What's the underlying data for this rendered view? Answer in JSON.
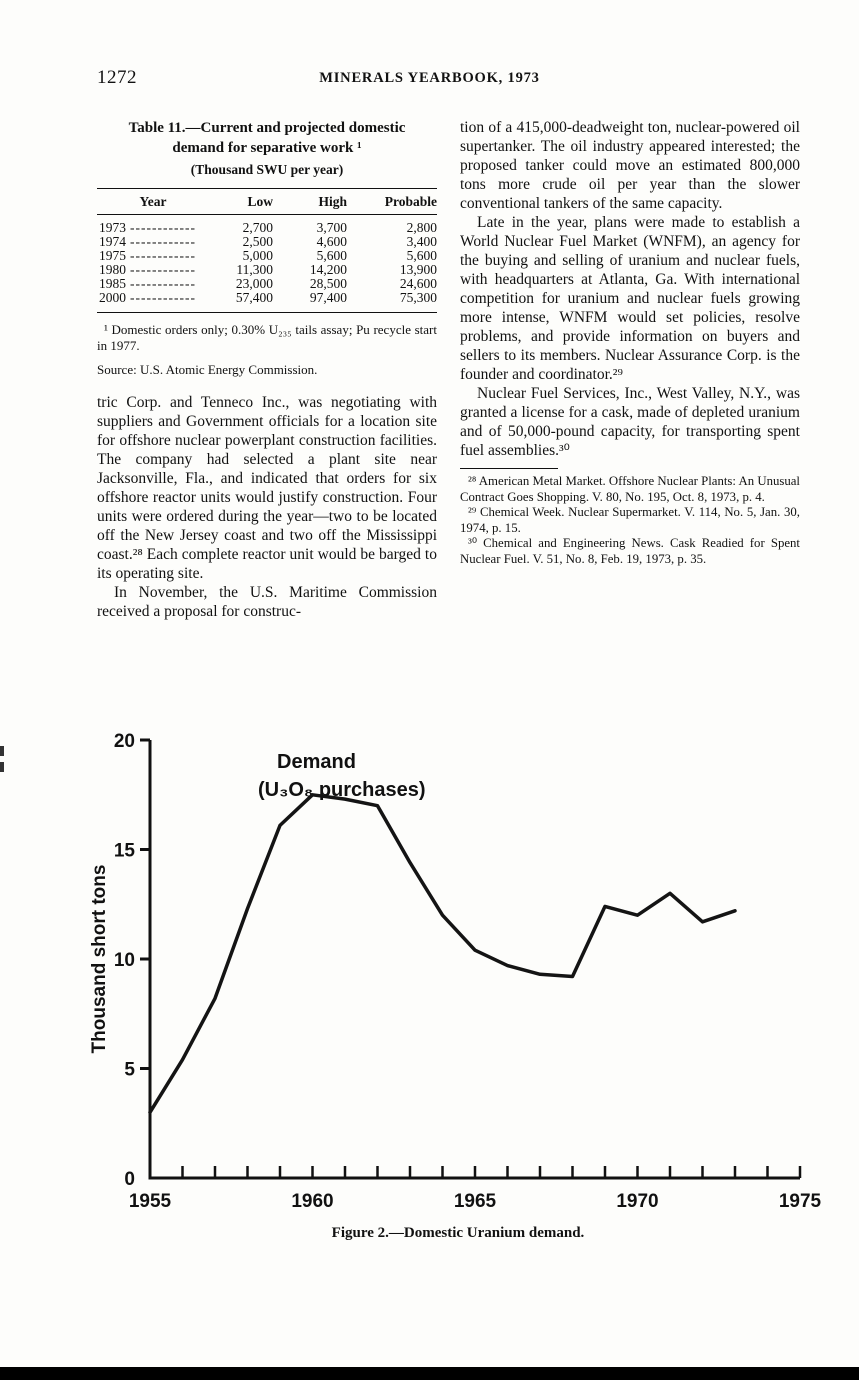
{
  "page": {
    "number": "1272",
    "running_head": "MINERALS YEARBOOK, 1973"
  },
  "table11": {
    "title_line1": "Table 11.—Current and projected domestic",
    "title_line2": "demand for separative work ¹",
    "subtitle": "(Thousand SWU per year)",
    "leader": "------------",
    "headers": {
      "year": "Year",
      "low": "Low",
      "high": "High",
      "probable": "Probable"
    },
    "rows": [
      {
        "year": "1973",
        "low": "2,700",
        "high": "3,700",
        "probable": "2,800"
      },
      {
        "year": "1974",
        "low": "2,500",
        "high": "4,600",
        "probable": "3,400"
      },
      {
        "year": "1975",
        "low": "5,000",
        "high": "5,600",
        "probable": "5,600"
      },
      {
        "year": "1980",
        "low": "11,300",
        "high": "14,200",
        "probable": "13,900"
      },
      {
        "year": "1985",
        "low": "23,000",
        "high": "28,500",
        "probable": "24,600"
      },
      {
        "year": "2000",
        "low": "57,400",
        "high": "97,400",
        "probable": "75,300"
      }
    ],
    "footnote": "¹ Domestic orders only; 0.30% U₂₃₅ tails assay; Pu recycle start in 1977.",
    "source": "Source: U.S. Atomic Energy Commission."
  },
  "left_column": {
    "paragraph1": "tric Corp. and Tenneco Inc., was negotiating with suppliers and Government officials for a location site for offshore nuclear powerplant construction facilities. The company had selected a plant site near Jacksonville, Fla., and indicated that orders for six offshore reactor units would justify construction. Four units were ordered during the year—two to be located off the New Jersey coast and two off the Mississippi coast.²⁸ Each complete reactor unit would be barged to its operating site.",
    "paragraph2": "In November, the U.S. Maritime Commission received a proposal for construc-"
  },
  "right_column": {
    "paragraph1": "tion of a 415,000-deadweight ton, nuclear-powered oil supertanker. The oil industry appeared interested; the proposed tanker could move an estimated 800,000 tons more crude oil per year than the slower conventional tankers of the same capacity.",
    "paragraph2": "Late in the year, plans were made to establish a World Nuclear Fuel Market (WNFM), an agency for the buying and selling of uranium and nuclear fuels, with headquarters at Atlanta, Ga. With international competition for uranium and nuclear fuels growing more intense, WNFM would set policies, resolve problems, and provide information on buyers and sellers to its members. Nuclear Assurance Corp. is the founder and coordinator.²⁹",
    "paragraph3": "Nuclear Fuel Services, Inc., West Valley, N.Y., was granted a license for a cask, made of depleted uranium and of 50,000-pound capacity, for transporting spent fuel assemblies.³⁰",
    "footnotes": [
      "²⁸ American Metal Market. Offshore Nuclear Plants: An Unusual Contract Goes Shopping. V. 80, No. 195, Oct. 8, 1973, p. 4.",
      "²⁹ Chemical Week. Nuclear Supermarket. V. 114, No. 5, Jan. 30, 1974, p. 15.",
      "³⁰ Chemical and Engineering News. Cask Readied for Spent Nuclear Fuel. V. 51, No. 8, Feb. 19, 1973, p. 35."
    ]
  },
  "chart_data": {
    "type": "line",
    "title": "Demand (U₃O₈ purchases)",
    "label_line1": "Demand",
    "label_line2": "(U₃O₈ purchases)",
    "xlabel": "",
    "ylabel": "Thousand short tons",
    "x": [
      1955,
      1956,
      1957,
      1958,
      1959,
      1960,
      1961,
      1962,
      1963,
      1964,
      1965,
      1966,
      1967,
      1968,
      1969,
      1970,
      1971,
      1972,
      1973
    ],
    "values": [
      3.0,
      5.4,
      8.2,
      12.3,
      16.1,
      17.5,
      17.3,
      17.0,
      14.4,
      12.0,
      10.4,
      9.7,
      9.3,
      9.2,
      12.4,
      12.0,
      13.0,
      11.7,
      12.2
    ],
    "xlim": [
      1955,
      1975
    ],
    "ylim": [
      0,
      20
    ],
    "x_tick_interval": 1,
    "x_label_ticks": [
      1955,
      1960,
      1965,
      1970,
      1975
    ],
    "y_ticks": [
      0,
      5,
      10,
      15,
      20
    ],
    "grid": false,
    "legend": "none",
    "line_color": "#141414"
  },
  "figure": {
    "caption": "Figure 2.—Domestic Uranium demand."
  }
}
